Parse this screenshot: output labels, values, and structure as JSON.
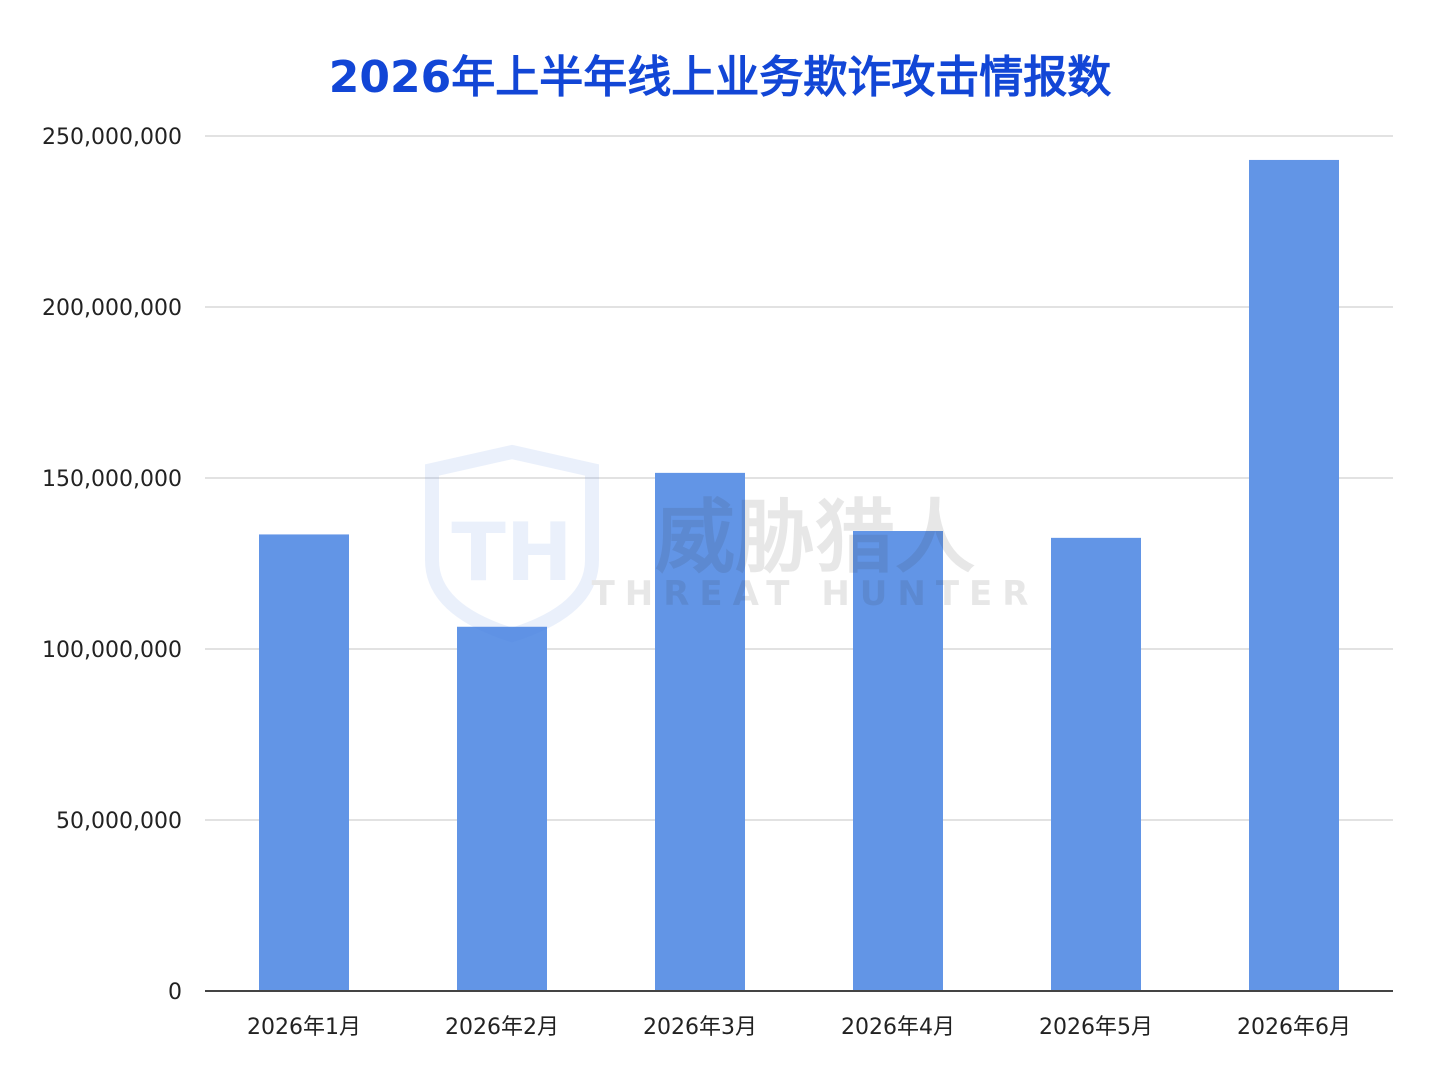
{
  "chart_data": {
    "type": "bar",
    "title": "2026年上半年线上业务欺诈攻击情报数",
    "categories": [
      "2026年1月",
      "2026年2月",
      "2026年3月",
      "2026年4月",
      "2026年5月",
      "2026年6月"
    ],
    "values": [
      133500000,
      106500000,
      151500000,
      134500000,
      132500000,
      243000000
    ],
    "ylim": [
      0,
      250000000
    ],
    "yticks": [
      0,
      50000000,
      100000000,
      150000000,
      200000000,
      250000000
    ],
    "ytick_labels": [
      "0",
      "50,000,000",
      "100,000,000",
      "150,000,000",
      "200,000,000",
      "250,000,000"
    ],
    "grid": true,
    "legend": "none",
    "colors": {
      "bar": "#6295e6",
      "title": "#1246d6",
      "grid": "#d9d9d9",
      "axis": "#444444"
    }
  },
  "watermark": {
    "logo_letters": "TH",
    "name_cn": "威胁猎人",
    "name_en": "THREAT HUNTER"
  }
}
